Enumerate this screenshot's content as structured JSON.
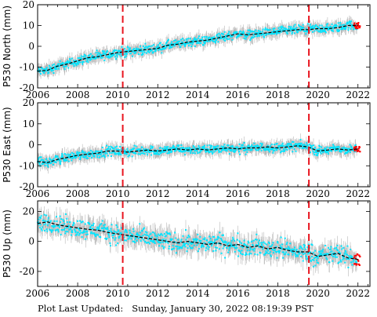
{
  "footer": {
    "label": "Plot Last Updated:",
    "timestamp": "Sunday, January 30, 2022 08:19:39 PST"
  },
  "colors": {
    "errorbar": "#b8b8b8",
    "points": "#00e5ff",
    "trend": "#000000",
    "recent": "#ff0000",
    "event_line": "#e8141e"
  },
  "chart_data": [
    {
      "type": "scatter",
      "ylabel": "P530 North (mm)",
      "xlim": [
        2006,
        2022.6
      ],
      "ylim": [
        -20,
        20
      ],
      "x_ticks": [
        2006,
        2008,
        2010,
        2012,
        2014,
        2016,
        2018,
        2020,
        2022
      ],
      "y_ticks": [
        -20,
        -10,
        0,
        10,
        20
      ],
      "event_lines": [
        2010.25,
        2019.55
      ],
      "trend": [
        {
          "x": 2006.0,
          "y": -12.0
        },
        {
          "x": 2006.5,
          "y": -11.5
        },
        {
          "x": 2007.0,
          "y": -9.5
        },
        {
          "x": 2007.5,
          "y": -8.5
        },
        {
          "x": 2008.0,
          "y": -7.0
        },
        {
          "x": 2008.5,
          "y": -5.5
        },
        {
          "x": 2009.0,
          "y": -5.0
        },
        {
          "x": 2009.5,
          "y": -4.0
        },
        {
          "x": 2010.0,
          "y": -3.0
        },
        {
          "x": 2010.5,
          "y": -2.5
        },
        {
          "x": 2011.0,
          "y": -2.0
        },
        {
          "x": 2011.5,
          "y": -1.5
        },
        {
          "x": 2012.0,
          "y": -1.0
        },
        {
          "x": 2012.5,
          "y": 0.5
        },
        {
          "x": 2013.0,
          "y": 1.0
        },
        {
          "x": 2013.5,
          "y": 2.0
        },
        {
          "x": 2014.0,
          "y": 2.5
        },
        {
          "x": 2014.5,
          "y": 3.0
        },
        {
          "x": 2015.0,
          "y": 4.0
        },
        {
          "x": 2015.5,
          "y": 5.0
        },
        {
          "x": 2016.0,
          "y": 6.0
        },
        {
          "x": 2016.5,
          "y": 5.5
        },
        {
          "x": 2017.0,
          "y": 6.0
        },
        {
          "x": 2017.5,
          "y": 6.5
        },
        {
          "x": 2018.0,
          "y": 7.0
        },
        {
          "x": 2018.5,
          "y": 7.5
        },
        {
          "x": 2019.0,
          "y": 8.0
        },
        {
          "x": 2019.5,
          "y": 8.0
        },
        {
          "x": 2020.0,
          "y": 8.5
        },
        {
          "x": 2020.5,
          "y": 8.5
        },
        {
          "x": 2021.0,
          "y": 9.0
        },
        {
          "x": 2021.5,
          "y": 10.0
        },
        {
          "x": 2022.0,
          "y": 10.0
        }
      ]
    },
    {
      "type": "scatter",
      "ylabel": "P530 East (mm)",
      "xlim": [
        2006,
        2022.6
      ],
      "ylim": [
        -20,
        20
      ],
      "x_ticks": [
        2006,
        2008,
        2010,
        2012,
        2014,
        2016,
        2018,
        2020,
        2022
      ],
      "y_ticks": [
        -20,
        -10,
        0,
        10,
        20
      ],
      "event_lines": [
        2010.25,
        2019.55
      ],
      "trend": [
        {
          "x": 2006.0,
          "y": -8.0
        },
        {
          "x": 2006.5,
          "y": -8.5
        },
        {
          "x": 2007.0,
          "y": -7.0
        },
        {
          "x": 2007.5,
          "y": -6.0
        },
        {
          "x": 2008.0,
          "y": -5.0
        },
        {
          "x": 2008.5,
          "y": -4.5
        },
        {
          "x": 2009.0,
          "y": -4.0
        },
        {
          "x": 2009.5,
          "y": -3.0
        },
        {
          "x": 2010.0,
          "y": -3.0
        },
        {
          "x": 2010.5,
          "y": -3.5
        },
        {
          "x": 2011.0,
          "y": -3.0
        },
        {
          "x": 2011.5,
          "y": -2.5
        },
        {
          "x": 2012.0,
          "y": -3.0
        },
        {
          "x": 2012.5,
          "y": -2.5
        },
        {
          "x": 2013.0,
          "y": -2.0
        },
        {
          "x": 2013.5,
          "y": -2.5
        },
        {
          "x": 2014.0,
          "y": -2.0
        },
        {
          "x": 2014.5,
          "y": -2.5
        },
        {
          "x": 2015.0,
          "y": -2.0
        },
        {
          "x": 2015.5,
          "y": -1.5
        },
        {
          "x": 2016.0,
          "y": -2.0
        },
        {
          "x": 2016.5,
          "y": -1.5
        },
        {
          "x": 2017.0,
          "y": -1.5
        },
        {
          "x": 2017.5,
          "y": -1.0
        },
        {
          "x": 2018.0,
          "y": -1.5
        },
        {
          "x": 2018.5,
          "y": -1.0
        },
        {
          "x": 2019.0,
          "y": -0.5
        },
        {
          "x": 2019.5,
          "y": -1.0
        },
        {
          "x": 2020.0,
          "y": -3.0
        },
        {
          "x": 2020.5,
          "y": -2.5
        },
        {
          "x": 2021.0,
          "y": -2.0
        },
        {
          "x": 2021.5,
          "y": -2.5
        },
        {
          "x": 2022.0,
          "y": -2.0
        }
      ]
    },
    {
      "type": "scatter",
      "ylabel": "P530 Up (mm)",
      "xlim": [
        2006,
        2022.6
      ],
      "ylim": [
        -30,
        27
      ],
      "x_ticks": [
        2006,
        2008,
        2010,
        2012,
        2014,
        2016,
        2018,
        2020,
        2022
      ],
      "y_ticks": [
        -20,
        0,
        20
      ],
      "event_lines": [
        2010.25,
        2019.55
      ],
      "trend": [
        {
          "x": 2006.0,
          "y": 12.0
        },
        {
          "x": 2006.5,
          "y": 13.0
        },
        {
          "x": 2007.0,
          "y": 11.0
        },
        {
          "x": 2007.5,
          "y": 10.0
        },
        {
          "x": 2008.0,
          "y": 9.0
        },
        {
          "x": 2008.5,
          "y": 8.0
        },
        {
          "x": 2009.0,
          "y": 7.5
        },
        {
          "x": 2009.5,
          "y": 6.0
        },
        {
          "x": 2010.0,
          "y": 5.0
        },
        {
          "x": 2010.5,
          "y": 4.0
        },
        {
          "x": 2011.0,
          "y": 3.0
        },
        {
          "x": 2011.5,
          "y": 2.0
        },
        {
          "x": 2012.0,
          "y": 1.0
        },
        {
          "x": 2012.5,
          "y": 0.0
        },
        {
          "x": 2013.0,
          "y": -1.0
        },
        {
          "x": 2013.5,
          "y": 0.0
        },
        {
          "x": 2014.0,
          "y": -1.0
        },
        {
          "x": 2014.5,
          "y": -2.0
        },
        {
          "x": 2015.0,
          "y": -1.0
        },
        {
          "x": 2015.5,
          "y": -3.0
        },
        {
          "x": 2016.0,
          "y": -2.0
        },
        {
          "x": 2016.5,
          "y": -4.0
        },
        {
          "x": 2017.0,
          "y": -3.0
        },
        {
          "x": 2017.5,
          "y": -5.0
        },
        {
          "x": 2018.0,
          "y": -4.0
        },
        {
          "x": 2018.5,
          "y": -6.0
        },
        {
          "x": 2019.0,
          "y": -7.0
        },
        {
          "x": 2019.5,
          "y": -7.0
        },
        {
          "x": 2020.0,
          "y": -10.0
        },
        {
          "x": 2020.5,
          "y": -9.0
        },
        {
          "x": 2021.0,
          "y": -8.0
        },
        {
          "x": 2021.5,
          "y": -11.0
        },
        {
          "x": 2022.0,
          "y": -12.0
        }
      ]
    }
  ]
}
